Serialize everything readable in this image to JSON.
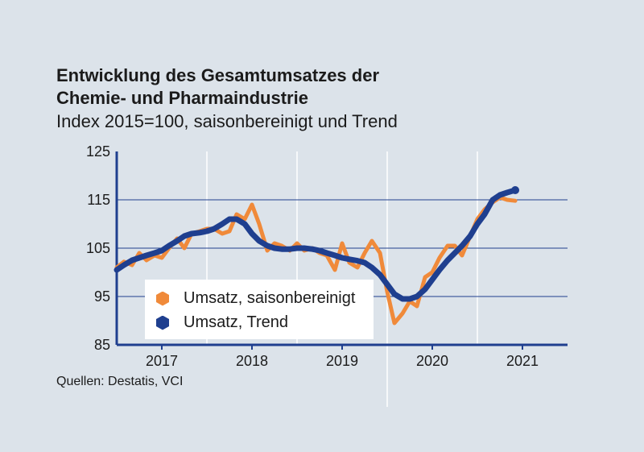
{
  "header": {
    "title_line1": "Entwicklung des Gesamtumsatzes der",
    "title_line2": "Chemie- und Pharmaindustrie",
    "subtitle": "Index 2015=100, saisonbereinigt und Trend"
  },
  "source": "Quellen: Destatis, VCI",
  "colors": {
    "seasonal": "#f08a3a",
    "trend": "#1f3f8f",
    "axis": "#1f3f8f",
    "grid": "#1f3f8f",
    "background": "#dce3ea"
  },
  "chart_data": {
    "type": "line",
    "title": "Entwicklung des Gesamtumsatzes der Chemie- und Pharmaindustrie",
    "subtitle": "Index 2015=100, saisonbereinigt und Trend",
    "xlabel": "",
    "ylabel": "",
    "ylim": [
      85,
      125
    ],
    "yticks": [
      85,
      95,
      105,
      115,
      125
    ],
    "xlim": [
      2016.5,
      2021.5
    ],
    "xtick_labels": [
      "2017",
      "2018",
      "2019",
      "2020",
      "2021"
    ],
    "xtick_values": [
      2017,
      2018,
      2019,
      2020,
      2021
    ],
    "vertical_separators": [
      2017.5,
      2018.5,
      2019.5,
      2020.5
    ],
    "legend_position": "lower-left",
    "series": [
      {
        "name": "Umsatz, saisonbereinigt",
        "x": [
          2016.5,
          2016.58,
          2016.67,
          2016.75,
          2016.83,
          2016.92,
          2017.0,
          2017.08,
          2017.17,
          2017.25,
          2017.33,
          2017.42,
          2017.5,
          2017.58,
          2017.67,
          2017.75,
          2017.83,
          2017.92,
          2018.0,
          2018.08,
          2018.17,
          2018.25,
          2018.33,
          2018.42,
          2018.5,
          2018.58,
          2018.67,
          2018.75,
          2018.83,
          2018.92,
          2019.0,
          2019.08,
          2019.17,
          2019.25,
          2019.33,
          2019.42,
          2019.5,
          2019.58,
          2019.67,
          2019.75,
          2019.83,
          2019.92,
          2020.0,
          2020.08,
          2020.17,
          2020.25,
          2020.33,
          2020.42,
          2020.5,
          2020.58,
          2020.67,
          2020.75,
          2020.83,
          2020.92
        ],
        "values": [
          101,
          102.2,
          101.5,
          104,
          102.5,
          103.5,
          103,
          105,
          107,
          105,
          108,
          108.5,
          109,
          109,
          108,
          108.5,
          112,
          111,
          114,
          110,
          104.5,
          106,
          105.5,
          104.5,
          106,
          104.5,
          105,
          104,
          103.5,
          100.5,
          106,
          102,
          101,
          104,
          106.5,
          104,
          96,
          89.5,
          91.5,
          94,
          93,
          99,
          100,
          103,
          105.5,
          105.5,
          103.5,
          107.5,
          111,
          113,
          114.5,
          115.5,
          115,
          114.8
        ],
        "color": "#f08a3a"
      },
      {
        "name": "Umsatz, Trend",
        "x": [
          2016.5,
          2016.58,
          2016.67,
          2016.75,
          2016.83,
          2016.92,
          2017.0,
          2017.08,
          2017.17,
          2017.25,
          2017.33,
          2017.42,
          2017.5,
          2017.58,
          2017.67,
          2017.75,
          2017.83,
          2017.92,
          2018.0,
          2018.08,
          2018.17,
          2018.25,
          2018.33,
          2018.42,
          2018.5,
          2018.58,
          2018.67,
          2018.75,
          2018.83,
          2018.92,
          2019.0,
          2019.08,
          2019.17,
          2019.25,
          2019.33,
          2019.42,
          2019.5,
          2019.58,
          2019.67,
          2019.75,
          2019.83,
          2019.92,
          2020.0,
          2020.08,
          2020.17,
          2020.25,
          2020.33,
          2020.42,
          2020.5,
          2020.58,
          2020.67,
          2020.75,
          2020.83,
          2020.92
        ],
        "values": [
          100.5,
          101.5,
          102.5,
          103,
          103.5,
          104,
          104.5,
          105.5,
          106.5,
          107.5,
          108,
          108.2,
          108.5,
          109,
          110,
          111,
          111,
          110,
          108,
          106.5,
          105.5,
          105,
          104.8,
          104.8,
          105,
          105,
          104.8,
          104.5,
          104,
          103.5,
          103,
          102.7,
          102.4,
          102,
          101,
          99.5,
          97.5,
          95.5,
          94.5,
          94.5,
          95,
          96.5,
          98.5,
          100.5,
          102.5,
          104,
          105.5,
          107.5,
          110,
          112,
          115,
          116,
          116.5,
          117
        ],
        "color": "#1f3f8f"
      }
    ]
  },
  "legend": {
    "items": [
      {
        "label": "Umsatz, saisonbereinigt"
      },
      {
        "label": "Umsatz, Trend"
      }
    ]
  }
}
